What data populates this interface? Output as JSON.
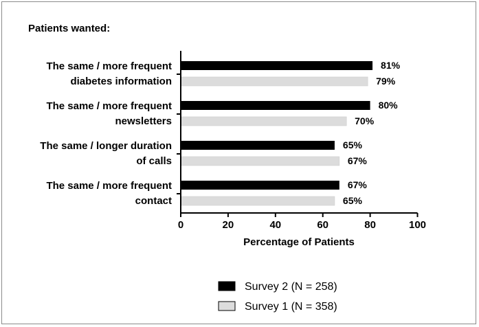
{
  "chart_data": {
    "type": "bar",
    "orientation": "horizontal",
    "title": "Patients wanted:",
    "xlabel": "Percentage of Patients",
    "ylabel": "",
    "xlim": [
      0,
      100
    ],
    "xticks": [
      0,
      20,
      40,
      60,
      80,
      100
    ],
    "categories": [
      [
        "The same / more frequent",
        "diabetes information"
      ],
      [
        "The same / more frequent",
        "newsletters"
      ],
      [
        "The same / longer duration",
        "of calls"
      ],
      [
        "The same / more frequent",
        "contact"
      ]
    ],
    "series": [
      {
        "name": "Survey 2 (N = 258)",
        "color": "#000000",
        "values": [
          81,
          80,
          65,
          67
        ],
        "labels": [
          "81%",
          "80%",
          "65%",
          "67%"
        ]
      },
      {
        "name": "Survey 1 (N = 358)",
        "color": "#dcdcdc",
        "values": [
          79,
          70,
          67,
          65
        ],
        "labels": [
          "79%",
          "70%",
          "67%",
          "65%"
        ]
      }
    ],
    "grid": false,
    "legend_position": "bottom"
  }
}
